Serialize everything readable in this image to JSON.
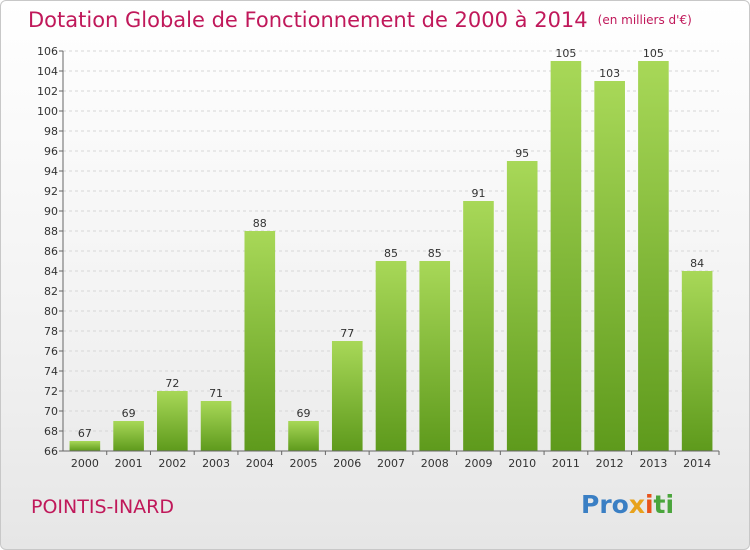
{
  "header": {
    "title": "Dotation Globale de Fonctionnement de 2000 à 2014",
    "unit": "(en milliers d'€)"
  },
  "footer": {
    "commune": "POINTIS-INARD",
    "logo": [
      "Pro",
      "x",
      "i",
      "ti"
    ]
  },
  "colors": {
    "title": "#c0185a",
    "bar_top": "#a8d858",
    "bar_bottom": "#5e9a1c"
  },
  "chart_data": {
    "type": "bar",
    "title": "Dotation Globale de Fonctionnement de 2000 à 2014",
    "subtitle": "(en milliers d'€)",
    "xlabel": "",
    "ylabel": "",
    "categories": [
      "2000",
      "2001",
      "2002",
      "2003",
      "2004",
      "2005",
      "2006",
      "2007",
      "2008",
      "2009",
      "2010",
      "2011",
      "2012",
      "2013",
      "2014"
    ],
    "values": [
      67,
      69,
      72,
      71,
      88,
      69,
      77,
      85,
      85,
      91,
      95,
      105,
      103,
      105,
      84
    ],
    "ylim": [
      66,
      106
    ],
    "yticks": [
      66,
      68,
      70,
      72,
      74,
      76,
      78,
      80,
      82,
      84,
      86,
      88,
      90,
      92,
      94,
      96,
      98,
      100,
      102,
      104,
      106
    ],
    "grid": true
  }
}
